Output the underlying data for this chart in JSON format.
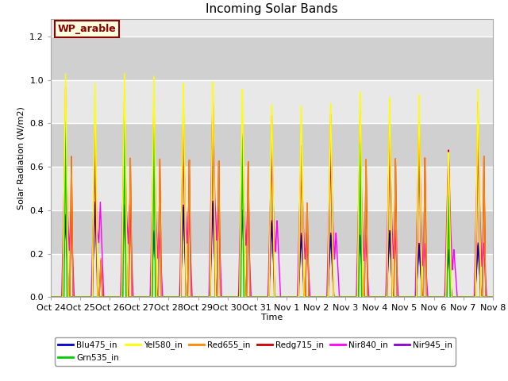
{
  "title": "Incoming Solar Bands",
  "xlabel": "Time",
  "ylabel": "Solar Radiation (W/m2)",
  "annotation": "WP_arable",
  "ylim": [
    0,
    1.28
  ],
  "num_days": 15,
  "xtick_labels": [
    "Oct 24",
    "Oct 25",
    "Oct 26",
    "Oct 27",
    "Oct 28",
    "Oct 29",
    "Oct 30",
    "Oct 31",
    "Nov 1",
    "Nov 2",
    "Nov 3",
    "Nov 4",
    "Nov 5",
    "Nov 6",
    "Nov 7",
    "Nov 8"
  ],
  "series": {
    "Blu475_in": {
      "color": "#0000cc"
    },
    "Grn535_in": {
      "color": "#00cc00"
    },
    "Yel580_in": {
      "color": "#ffff00"
    },
    "Red655_in": {
      "color": "#ff8800"
    },
    "Redg715_in": {
      "color": "#cc0000"
    },
    "Nir840_in": {
      "color": "#ff00ff"
    },
    "Nir945_in": {
      "color": "#8800cc"
    }
  },
  "yel_peaks": [
    1.03,
    0.99,
    1.04,
    1.03,
    1.0,
    1.01,
    0.98,
    0.91,
    0.9,
    0.91,
    0.96,
    0.93,
    0.94,
    0.67,
    0.96
  ],
  "yel_peaks2": [
    0.0,
    0.0,
    0.0,
    0.0,
    0.0,
    0.0,
    0.0,
    0.0,
    0.0,
    0.0,
    0.0,
    0.0,
    0.0,
    0.0,
    0.0
  ],
  "ora_peaks": [
    0.97,
    0.83,
    0.96,
    0.95,
    0.93,
    0.94,
    0.77,
    0.86,
    0.7,
    0.86,
    0.88,
    0.87,
    0.88,
    0.62,
    0.9
  ],
  "ora_peaks2": [
    0.65,
    0.18,
    0.65,
    0.65,
    0.65,
    0.65,
    0.65,
    0.0,
    0.45,
    0.0,
    0.65,
    0.65,
    0.65,
    0.0,
    0.65
  ],
  "red_peaks": [
    0.8,
    0.65,
    0.8,
    0.77,
    0.78,
    0.78,
    0.7,
    0.7,
    0.65,
    0.71,
    0.75,
    0.75,
    0.76,
    0.68,
    0.78
  ],
  "red_peaks2": [
    0.65,
    0.17,
    0.65,
    0.65,
    0.65,
    0.65,
    0.65,
    0.0,
    0.45,
    0.0,
    0.65,
    0.65,
    0.65,
    0.0,
    0.65
  ],
  "grn_peaks": [
    0.82,
    0.0,
    0.82,
    0.8,
    0.0,
    0.0,
    0.77,
    0.0,
    0.0,
    0.0,
    0.73,
    0.0,
    0.0,
    0.47,
    0.0
  ],
  "grn_peaks2": [
    0.0,
    0.0,
    0.0,
    0.0,
    0.0,
    0.0,
    0.0,
    0.0,
    0.0,
    0.0,
    0.0,
    0.0,
    0.0,
    0.0,
    0.0
  ],
  "mag_peaks": [
    0.8,
    0.65,
    0.8,
    0.77,
    0.78,
    0.94,
    0.76,
    0.7,
    0.71,
    0.75,
    0.75,
    0.76,
    0.78,
    0.68,
    0.78
  ],
  "mag_peaks2": [
    0.38,
    0.44,
    0.43,
    0.31,
    0.43,
    0.45,
    0.41,
    0.36,
    0.3,
    0.3,
    0.29,
    0.31,
    0.25,
    0.22,
    0.25
  ],
  "pur_peaks": [
    0.38,
    0.44,
    0.43,
    0.31,
    0.43,
    0.45,
    0.41,
    0.36,
    0.3,
    0.3,
    0.29,
    0.31,
    0.25,
    0.22,
    0.25
  ],
  "pur_peaks2": [
    0.0,
    0.0,
    0.0,
    0.0,
    0.0,
    0.0,
    0.0,
    0.0,
    0.0,
    0.0,
    0.0,
    0.0,
    0.0,
    0.0,
    0.0
  ],
  "blu_peaks": [
    0.37,
    0.43,
    0.42,
    0.3,
    0.42,
    0.44,
    0.4,
    0.35,
    0.29,
    0.29,
    0.28,
    0.3,
    0.24,
    0.21,
    0.24
  ],
  "blu_peaks2": [
    0.0,
    0.0,
    0.0,
    0.0,
    0.0,
    0.0,
    0.0,
    0.0,
    0.0,
    0.0,
    0.0,
    0.0,
    0.0,
    0.0,
    0.0
  ],
  "background_color": "#d8d8d8",
  "band1_color": "#e8e8e8",
  "band2_color": "#d0d0d0"
}
